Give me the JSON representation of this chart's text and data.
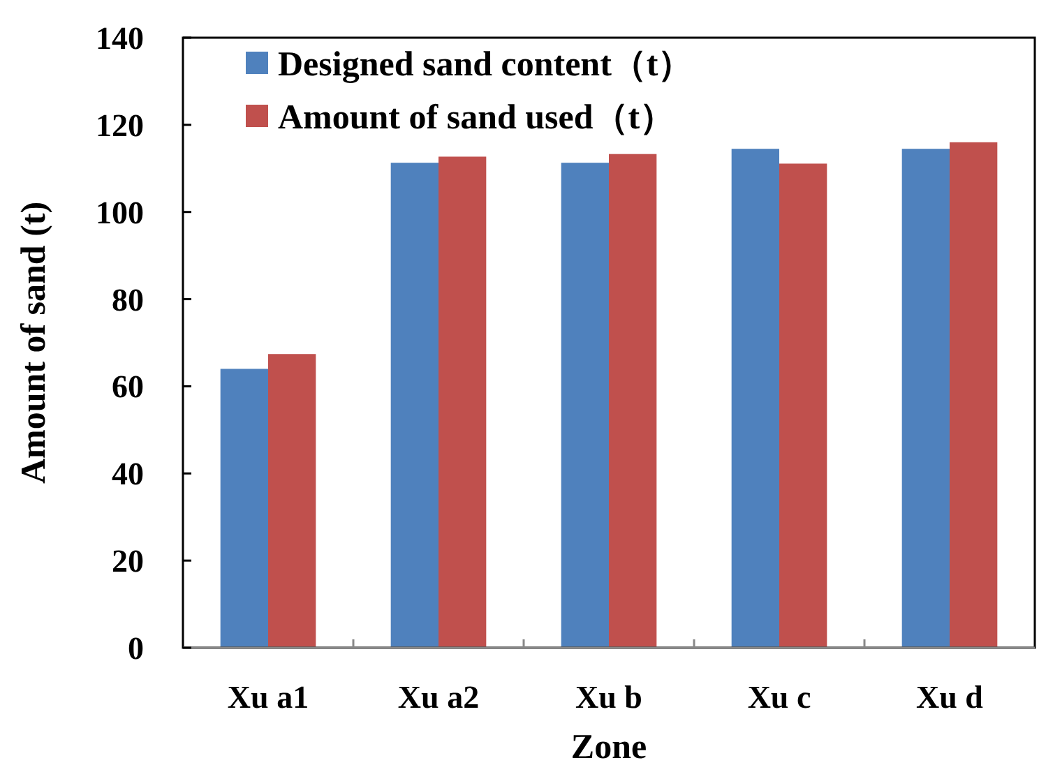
{
  "chart_data": {
    "type": "bar",
    "xlabel": "Zone",
    "ylabel": "Amount of sand (t)",
    "categories": [
      "Xu a1",
      "Xu a2",
      "Xu b",
      "Xu c",
      "Xu d"
    ],
    "series": [
      {
        "name": "Designed sand content（t）",
        "color": "#4f81bd",
        "values": [
          64.0,
          111.3,
          111.3,
          114.5,
          114.5
        ]
      },
      {
        "name": "Amount of sand used（t）",
        "color": "#c0504d",
        "values": [
          67.4,
          112.7,
          113.3,
          111.1,
          116.0
        ]
      }
    ],
    "ylim": [
      0,
      140
    ],
    "yticks": [
      0,
      20,
      40,
      60,
      80,
      100,
      120,
      140
    ],
    "grid": false,
    "legend": "top left"
  }
}
